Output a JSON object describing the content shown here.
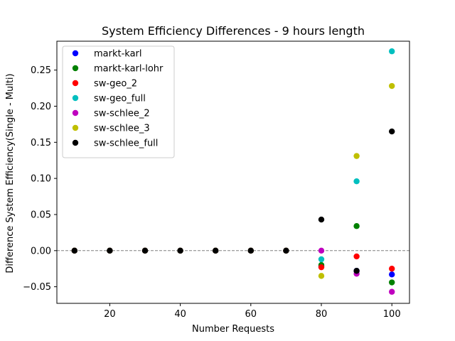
{
  "chart_data": {
    "type": "scatter",
    "title": "System Efficiency Differences - 9 hours length",
    "xlabel": "Number Requests",
    "ylabel": "Difference System Efficiency(Single - Multi)",
    "xlim": [
      5,
      105
    ],
    "ylim": [
      -0.073,
      0.29
    ],
    "xticks": [
      20,
      40,
      60,
      80,
      100
    ],
    "xtick_labels": [
      "20",
      "40",
      "60",
      "80",
      "100"
    ],
    "yticks": [
      -0.05,
      0.0,
      0.05,
      0.1,
      0.15,
      0.2,
      0.25
    ],
    "ytick_labels": [
      "−0.05",
      "0.00",
      "0.05",
      "0.10",
      "0.15",
      "0.20",
      "0.25"
    ],
    "grid": false,
    "reference_line": {
      "y": 0,
      "style": "dashed",
      "color": "#808080"
    },
    "legend_position": "upper-left",
    "x": [
      10,
      20,
      30,
      40,
      50,
      60,
      70,
      80,
      90,
      100
    ],
    "series": [
      {
        "name": "markt-karl",
        "color": "#0000ff",
        "values": [
          0,
          0,
          0,
          0,
          0,
          0,
          0,
          -0.022,
          -0.028,
          -0.033
        ]
      },
      {
        "name": "markt-karl-lohr",
        "color": "#008000",
        "values": [
          0,
          0,
          0,
          0,
          0,
          0,
          0,
          -0.02,
          0.034,
          -0.044
        ]
      },
      {
        "name": "sw-geo_2",
        "color": "#ff0000",
        "values": [
          0,
          0,
          0,
          0,
          0,
          0,
          0,
          -0.023,
          -0.008,
          -0.025
        ]
      },
      {
        "name": "sw-geo_full",
        "color": "#00bfbf",
        "values": [
          0,
          0,
          0,
          0,
          0,
          0,
          0,
          -0.012,
          0.096,
          0.276
        ]
      },
      {
        "name": "sw-schlee_2",
        "color": "#bf00bf",
        "values": [
          0,
          0,
          0,
          0,
          0,
          0,
          0,
          0.0,
          -0.032,
          -0.057
        ]
      },
      {
        "name": "sw-schlee_3",
        "color": "#bfbf00",
        "values": [
          0,
          0,
          0,
          0,
          0,
          0,
          0,
          -0.035,
          0.131,
          0.228
        ]
      },
      {
        "name": "sw-schlee_full",
        "color": "#000000",
        "values": [
          0,
          0,
          0,
          0,
          0,
          0,
          0,
          0.043,
          -0.028,
          0.165
        ]
      }
    ]
  }
}
